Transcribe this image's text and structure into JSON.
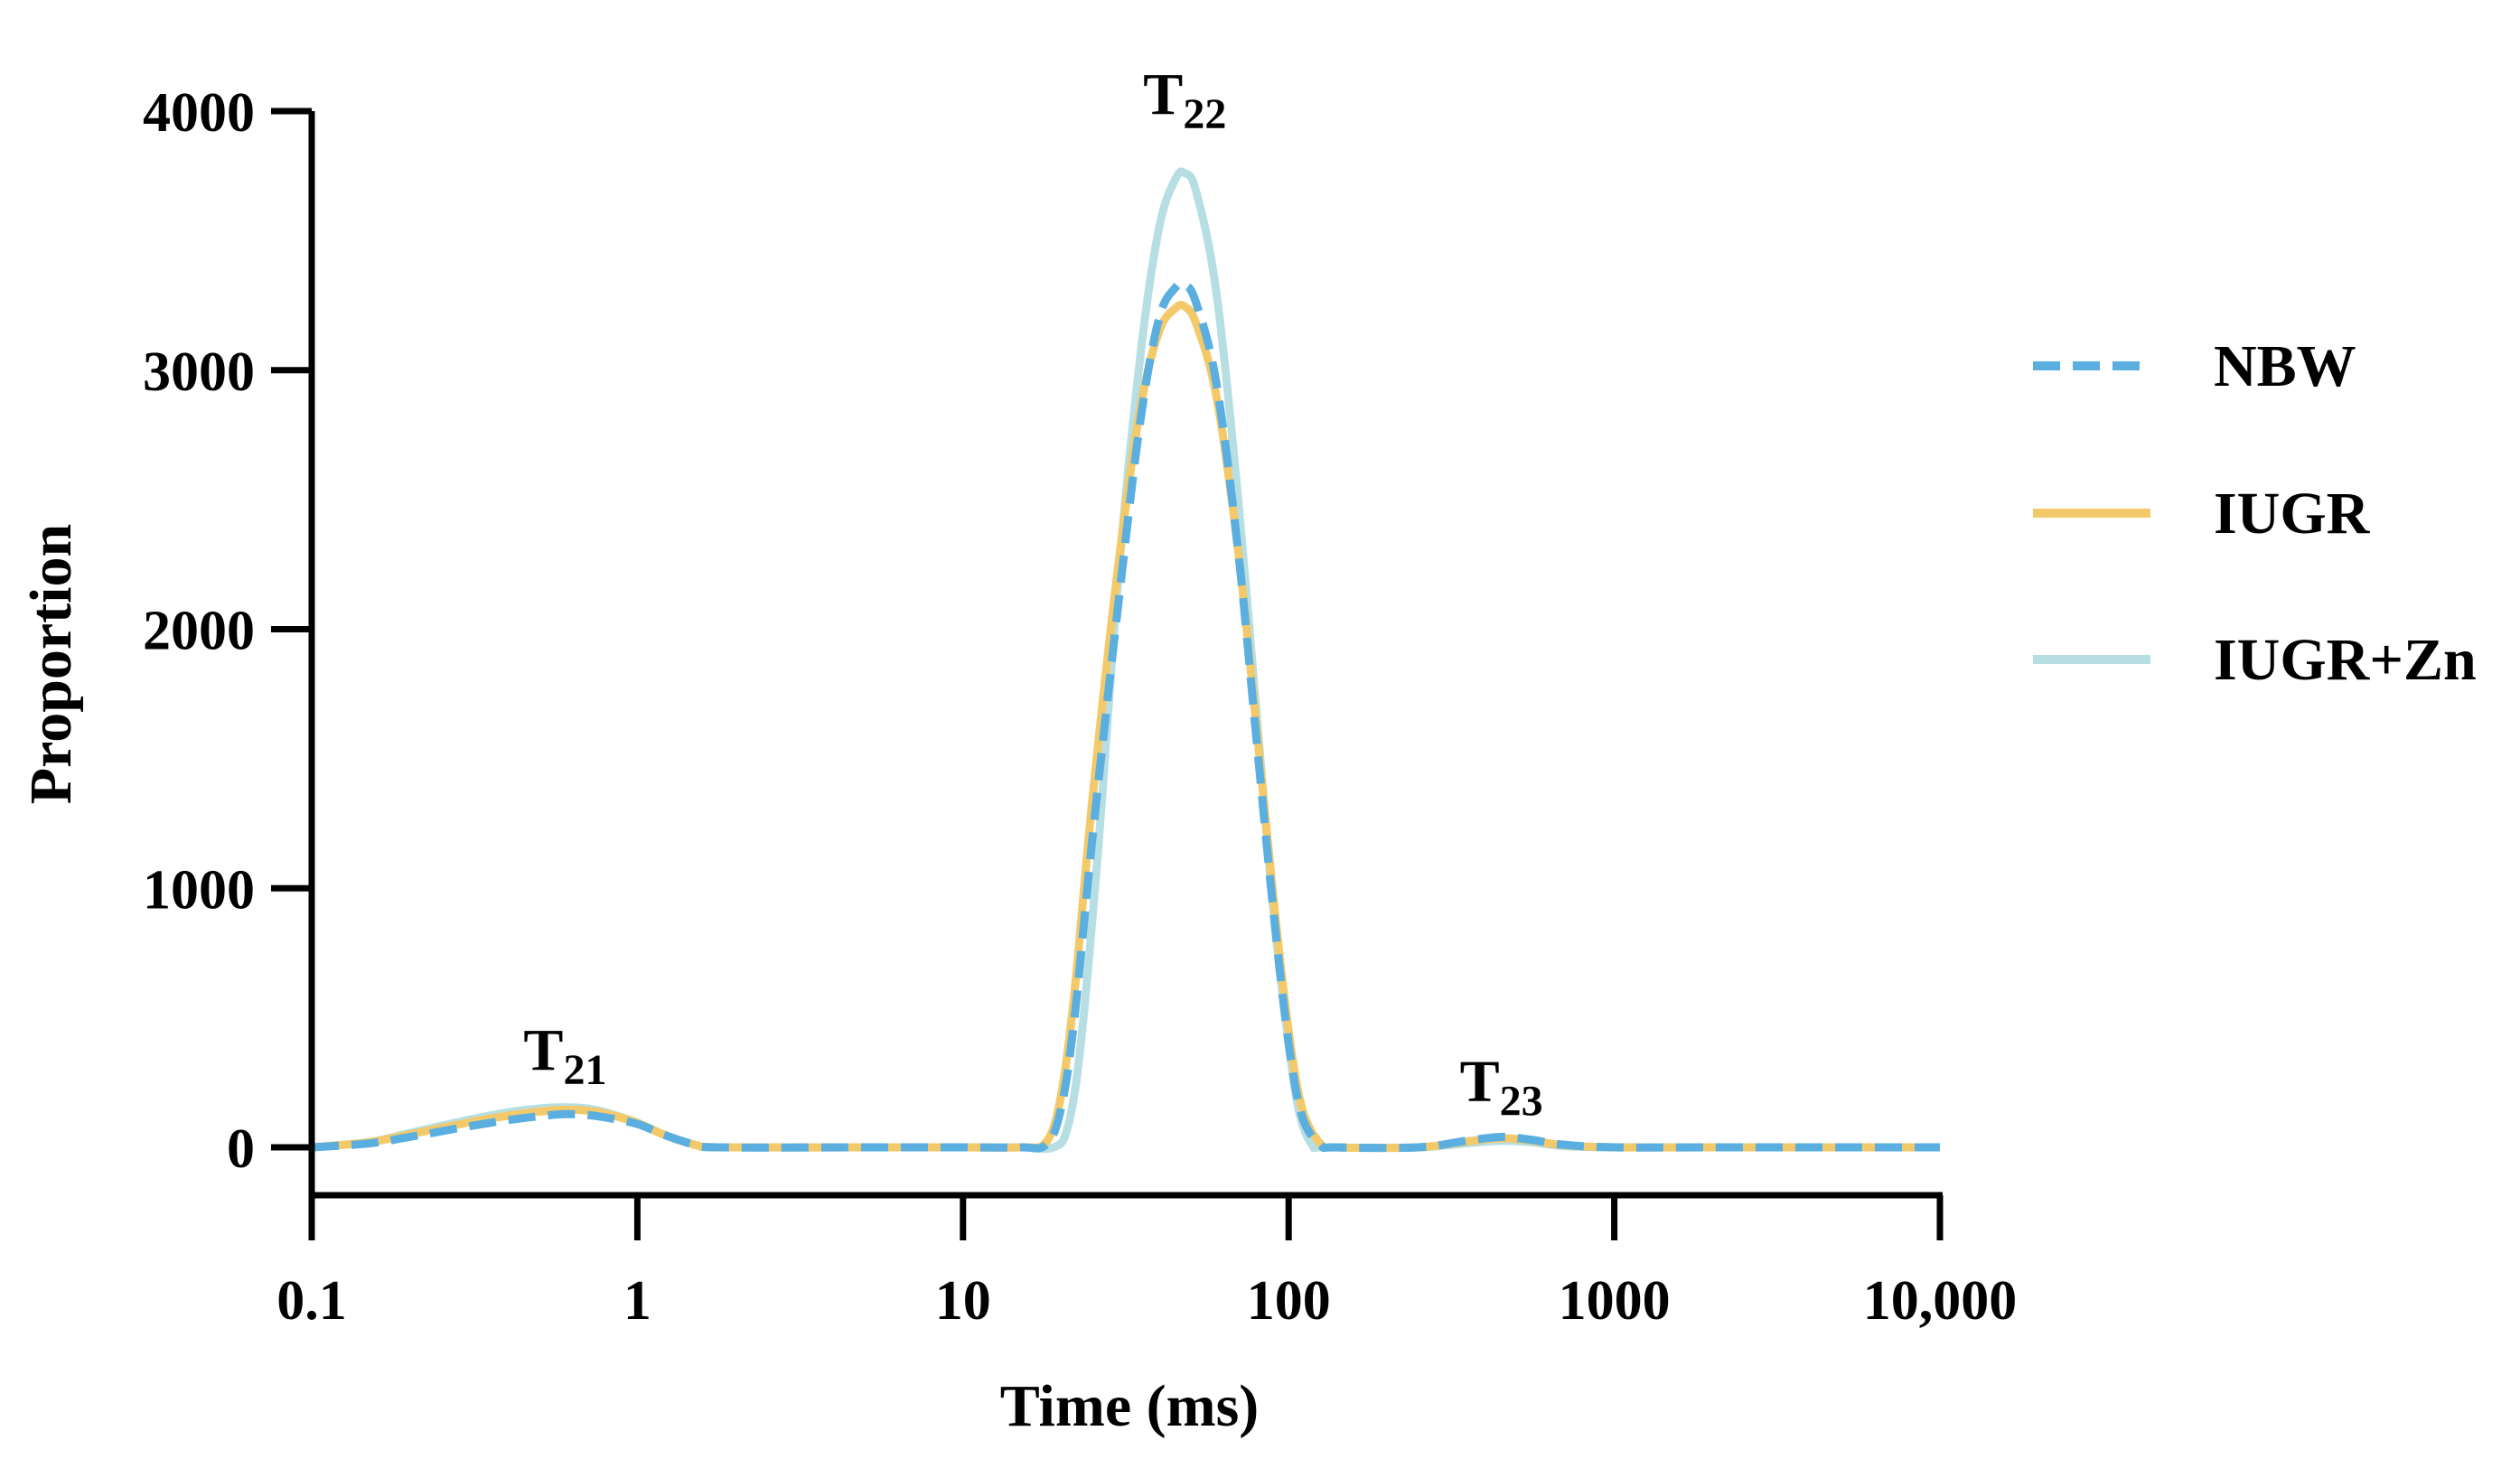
{
  "chart_data": {
    "type": "line",
    "xscale": "log",
    "xlim": [
      0.1,
      10000
    ],
    "ylim": [
      0,
      4000
    ],
    "xlabel": "Time (ms)",
    "ylabel": "Proportion",
    "xticks": [
      {
        "value": 0.1,
        "label": "0.1"
      },
      {
        "value": 1,
        "label": "1"
      },
      {
        "value": 10,
        "label": "10"
      },
      {
        "value": 100,
        "label": "100"
      },
      {
        "value": 1000,
        "label": "1000"
      },
      {
        "value": 10000,
        "label": "10,000"
      }
    ],
    "yticks": [
      {
        "value": 0,
        "label": "0"
      },
      {
        "value": 1000,
        "label": "1000"
      },
      {
        "value": 2000,
        "label": "2000"
      },
      {
        "value": 3000,
        "label": "3000"
      },
      {
        "value": 4000,
        "label": "4000"
      }
    ],
    "grid": false,
    "legend_position": "right",
    "peak_labels": [
      {
        "base": "T",
        "sub": "21",
        "x": 0.6,
        "y": 300
      },
      {
        "base": "T",
        "sub": "22",
        "x": 48,
        "y": 3990
      },
      {
        "base": "T",
        "sub": "23",
        "x": 450,
        "y": 180
      }
    ],
    "series": [
      {
        "name": "NBW",
        "color": "#5aafe0",
        "style": "dashed",
        "points": [
          [
            0.1,
            0
          ],
          [
            0.15,
            15
          ],
          [
            0.2,
            40
          ],
          [
            0.3,
            80
          ],
          [
            0.4,
            105
          ],
          [
            0.5,
            120
          ],
          [
            0.6,
            128
          ],
          [
            0.7,
            125
          ],
          [
            0.8,
            115
          ],
          [
            1.0,
            90
          ],
          [
            1.2,
            50
          ],
          [
            1.5,
            10
          ],
          [
            1.8,
            0
          ],
          [
            5,
            0
          ],
          [
            10,
            0
          ],
          [
            15,
            0
          ],
          [
            18,
            10
          ],
          [
            20,
            150
          ],
          [
            22,
            500
          ],
          [
            25,
            1200
          ],
          [
            30,
            2100
          ],
          [
            35,
            2800
          ],
          [
            40,
            3200
          ],
          [
            45,
            3320
          ],
          [
            48,
            3330
          ],
          [
            52,
            3260
          ],
          [
            60,
            2950
          ],
          [
            70,
            2300
          ],
          [
            80,
            1550
          ],
          [
            90,
            900
          ],
          [
            100,
            400
          ],
          [
            110,
            120
          ],
          [
            125,
            10
          ],
          [
            140,
            0
          ],
          [
            250,
            0
          ],
          [
            350,
            25
          ],
          [
            450,
            40
          ],
          [
            550,
            30
          ],
          [
            700,
            10
          ],
          [
            1000,
            0
          ],
          [
            2000,
            0
          ],
          [
            5000,
            0
          ],
          [
            10000,
            0
          ]
        ]
      },
      {
        "name": "IUGR",
        "color": "#f3c96a",
        "style": "solid",
        "points": [
          [
            0.1,
            0
          ],
          [
            0.15,
            20
          ],
          [
            0.2,
            50
          ],
          [
            0.3,
            95
          ],
          [
            0.4,
            122
          ],
          [
            0.5,
            138
          ],
          [
            0.6,
            145
          ],
          [
            0.7,
            142
          ],
          [
            0.8,
            130
          ],
          [
            1.0,
            95
          ],
          [
            1.2,
            50
          ],
          [
            1.5,
            10
          ],
          [
            1.8,
            0
          ],
          [
            5,
            0
          ],
          [
            10,
            0
          ],
          [
            15,
            0
          ],
          [
            18,
            20
          ],
          [
            20,
            200
          ],
          [
            22,
            600
          ],
          [
            25,
            1350
          ],
          [
            30,
            2250
          ],
          [
            35,
            2850
          ],
          [
            40,
            3150
          ],
          [
            45,
            3240
          ],
          [
            48,
            3245
          ],
          [
            52,
            3180
          ],
          [
            60,
            2900
          ],
          [
            70,
            2300
          ],
          [
            80,
            1600
          ],
          [
            90,
            950
          ],
          [
            100,
            450
          ],
          [
            110,
            150
          ],
          [
            125,
            15
          ],
          [
            140,
            0
          ],
          [
            250,
            0
          ],
          [
            350,
            22
          ],
          [
            450,
            35
          ],
          [
            550,
            27
          ],
          [
            700,
            8
          ],
          [
            1000,
            0
          ],
          [
            2000,
            0
          ],
          [
            5000,
            0
          ],
          [
            10000,
            0
          ]
        ]
      },
      {
        "name": "IUGR+Zn",
        "color": "#b7dfe3",
        "style": "solid",
        "points": [
          [
            0.1,
            0
          ],
          [
            0.15,
            20
          ],
          [
            0.2,
            55
          ],
          [
            0.3,
            105
          ],
          [
            0.4,
            135
          ],
          [
            0.5,
            150
          ],
          [
            0.6,
            155
          ],
          [
            0.7,
            150
          ],
          [
            0.8,
            135
          ],
          [
            1.0,
            95
          ],
          [
            1.2,
            50
          ],
          [
            1.5,
            10
          ],
          [
            1.8,
            0
          ],
          [
            5,
            0
          ],
          [
            10,
            0
          ],
          [
            15,
            0
          ],
          [
            19,
            0
          ],
          [
            21,
            80
          ],
          [
            23,
            400
          ],
          [
            26,
            1150
          ],
          [
            30,
            2200
          ],
          [
            35,
            3050
          ],
          [
            40,
            3550
          ],
          [
            45,
            3740
          ],
          [
            48,
            3760
          ],
          [
            52,
            3690
          ],
          [
            60,
            3300
          ],
          [
            70,
            2500
          ],
          [
            80,
            1650
          ],
          [
            90,
            900
          ],
          [
            100,
            400
          ],
          [
            108,
            130
          ],
          [
            118,
            10
          ],
          [
            130,
            0
          ],
          [
            250,
            0
          ],
          [
            350,
            15
          ],
          [
            450,
            25
          ],
          [
            550,
            20
          ],
          [
            700,
            5
          ],
          [
            1000,
            0
          ],
          [
            2000,
            0
          ],
          [
            5000,
            0
          ],
          [
            10000,
            0
          ]
        ]
      }
    ]
  }
}
